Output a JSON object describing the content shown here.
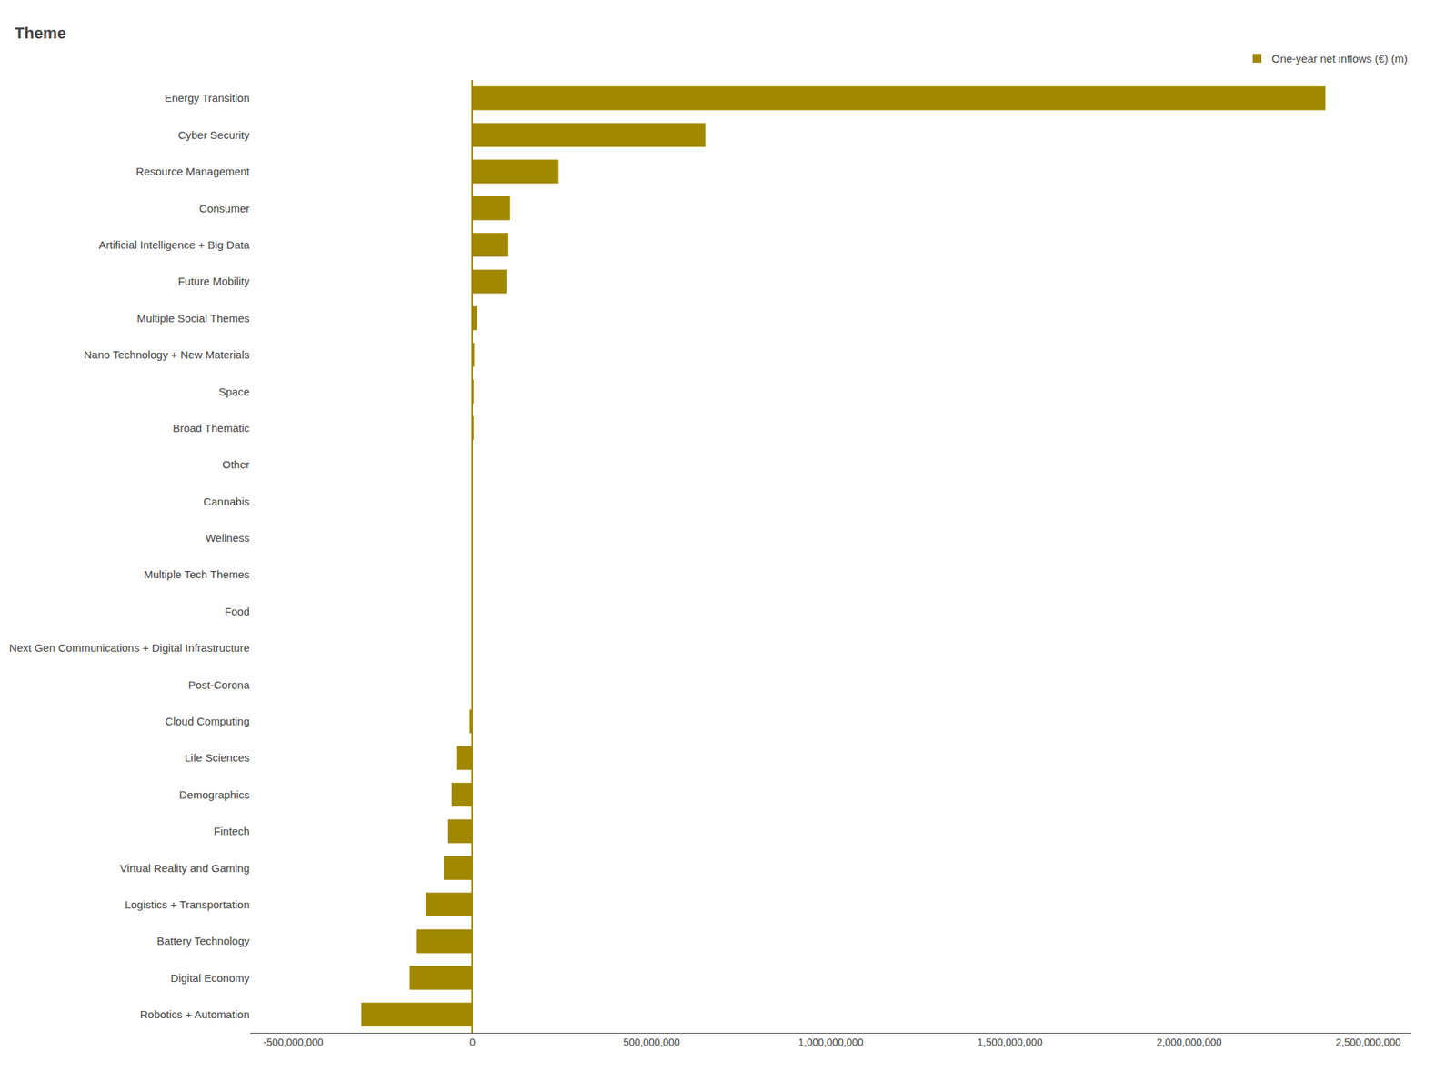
{
  "chart_data": {
    "type": "bar",
    "orientation": "horizontal",
    "title": "Theme",
    "categories": [
      "Energy Transition",
      "Cyber Security",
      "Resource Management",
      "Consumer",
      "Artificial Intelligence + Big Data",
      "Future Mobility",
      "Multiple Social Themes",
      "Nano Technology + New Materials",
      "Space",
      "Broad Thematic",
      "Other",
      "Cannabis",
      "Wellness",
      "Multiple Tech Themes",
      "Food",
      "Next Gen Communications + Digital Infrastructure",
      "Post-Corona",
      "Cloud Computing",
      "Life Sciences",
      "Demographics",
      "Fintech",
      "Virtual Reality and Gaming",
      "Logistics + Transportation",
      "Battery Technology",
      "Digital Economy",
      "Robotics + Automation"
    ],
    "series": [
      {
        "name": "One-year net inflows (€) (m)",
        "color": "#A08800",
        "values": [
          2380000000,
          650000000,
          240000000,
          105000000,
          100000000,
          95000000,
          12000000,
          5000000,
          3000000,
          1500000,
          1000000,
          600000,
          300000,
          150000,
          80000,
          30000,
          10000,
          -8000000,
          -45000000,
          -58000000,
          -68000000,
          -80000000,
          -130000000,
          -155000000,
          -175000000,
          -310000000
        ]
      }
    ],
    "xlim": [
      -620000000,
      2620000000
    ],
    "xticks": [
      {
        "value": -500000000,
        "label": "-500,000,000"
      },
      0,
      {
        "value": 500000000,
        "label": "500,000,000"
      },
      {
        "value": 1000000000,
        "label": "1,000,000,000"
      },
      {
        "value": 1500000000,
        "label": "1,500,000,000"
      },
      {
        "value": 2000000000,
        "label": "2,000,000,000"
      },
      {
        "value": 2500000000,
        "label": "2,500,000,000"
      }
    ],
    "grid": false,
    "legend": "upper right"
  }
}
